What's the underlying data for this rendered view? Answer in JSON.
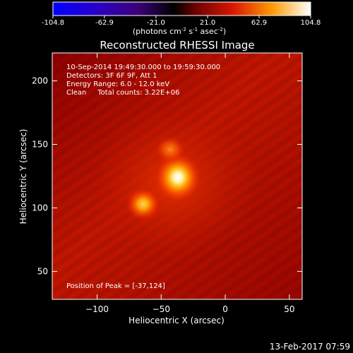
{
  "colorbar": {
    "ticks": [
      "-104.8",
      "-62.9",
      "-21.0",
      "21.0",
      "62.9",
      "104.8"
    ],
    "units_parts": [
      "(photons cm",
      "-2",
      " s",
      "-1",
      " asec",
      "-2",
      ")"
    ],
    "range": [
      -104.8,
      104.8
    ]
  },
  "plot": {
    "title": "Reconstructed RHESSI Image",
    "info_lines": [
      "10-Sep-2014 19:49:30.000 to 19:59:30.000",
      "Detectors: 3F 6F 9F, Att 1",
      "Energy Range: 6.0 - 12.0 keV",
      "Clean     Total counts: 3.22E+06"
    ],
    "peak_label": "Position of Peak = [-37,124]"
  },
  "footer": {
    "timestamp": "13-Feb-2017 07:59"
  },
  "chart_data": {
    "type": "heatmap",
    "title": "Reconstructed RHESSI Image",
    "xlabel": "Heliocentric X (arcsec)",
    "ylabel": "Heliocentric Y (arcsec)",
    "xlim": [
      -135,
      60
    ],
    "ylim": [
      28,
      222
    ],
    "x_ticks": [
      -100,
      -50,
      0,
      50
    ],
    "y_ticks": [
      50,
      100,
      150,
      200
    ],
    "colormap": "hot",
    "colorbar_range": [
      -104.8,
      104.8
    ],
    "sources": [
      {
        "x": -37,
        "y": 124,
        "level": 104.8
      },
      {
        "x": -64,
        "y": 103,
        "level": 62
      },
      {
        "x": -43,
        "y": 146,
        "level": 35
      }
    ],
    "peak": [
      -37,
      124
    ]
  }
}
